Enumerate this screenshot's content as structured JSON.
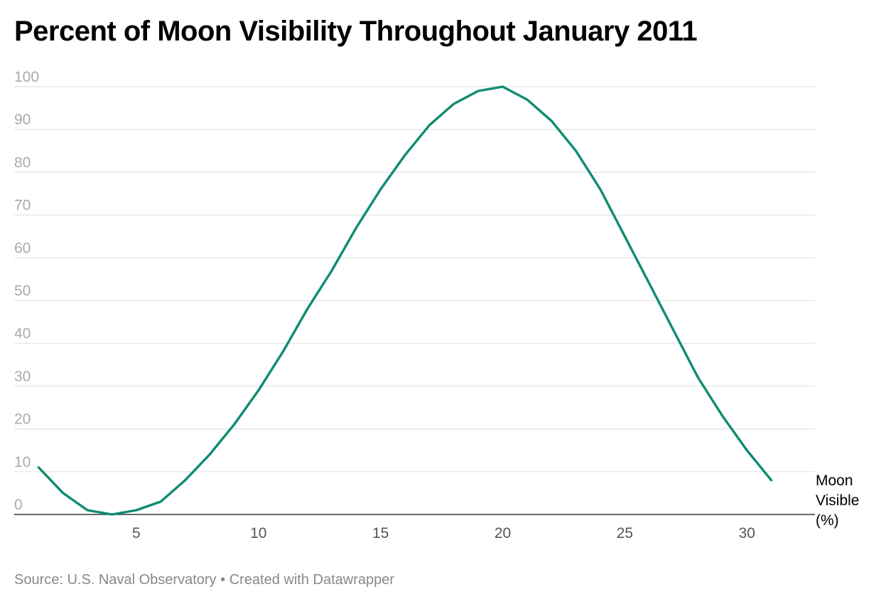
{
  "chart_data": {
    "type": "line",
    "title": "Percent of Moon Visibility Throughout January 2011",
    "xlabel": "",
    "ylabel": "",
    "x_ticks": [
      5,
      10,
      15,
      20,
      25,
      30
    ],
    "y_ticks": [
      0,
      10,
      20,
      30,
      40,
      50,
      60,
      70,
      80,
      90,
      100
    ],
    "xlim": [
      0,
      32
    ],
    "ylim": [
      0,
      100
    ],
    "grid": true,
    "line_color": "#0e8c72",
    "series": [
      {
        "name": "Moon Visible (%)",
        "label_lines": [
          "Moon",
          "Visible",
          "(%)"
        ],
        "x": [
          1,
          2,
          3,
          4,
          5,
          6,
          7,
          8,
          9,
          10,
          11,
          12,
          13,
          14,
          15,
          16,
          17,
          18,
          19,
          20,
          21,
          22,
          23,
          24,
          25,
          26,
          27,
          28,
          29,
          30,
          31
        ],
        "values": [
          11,
          5,
          1,
          0,
          1,
          3,
          8,
          14,
          21,
          29,
          38,
          48,
          57,
          67,
          76,
          84,
          91,
          96,
          99,
          100,
          97,
          92,
          85,
          76,
          65,
          54,
          43,
          32,
          23,
          15,
          8
        ]
      }
    ]
  },
  "footer": {
    "source_text": "Source: U.S. Naval Observatory",
    "separator": "•",
    "credit_text": "Created with Datawrapper"
  }
}
